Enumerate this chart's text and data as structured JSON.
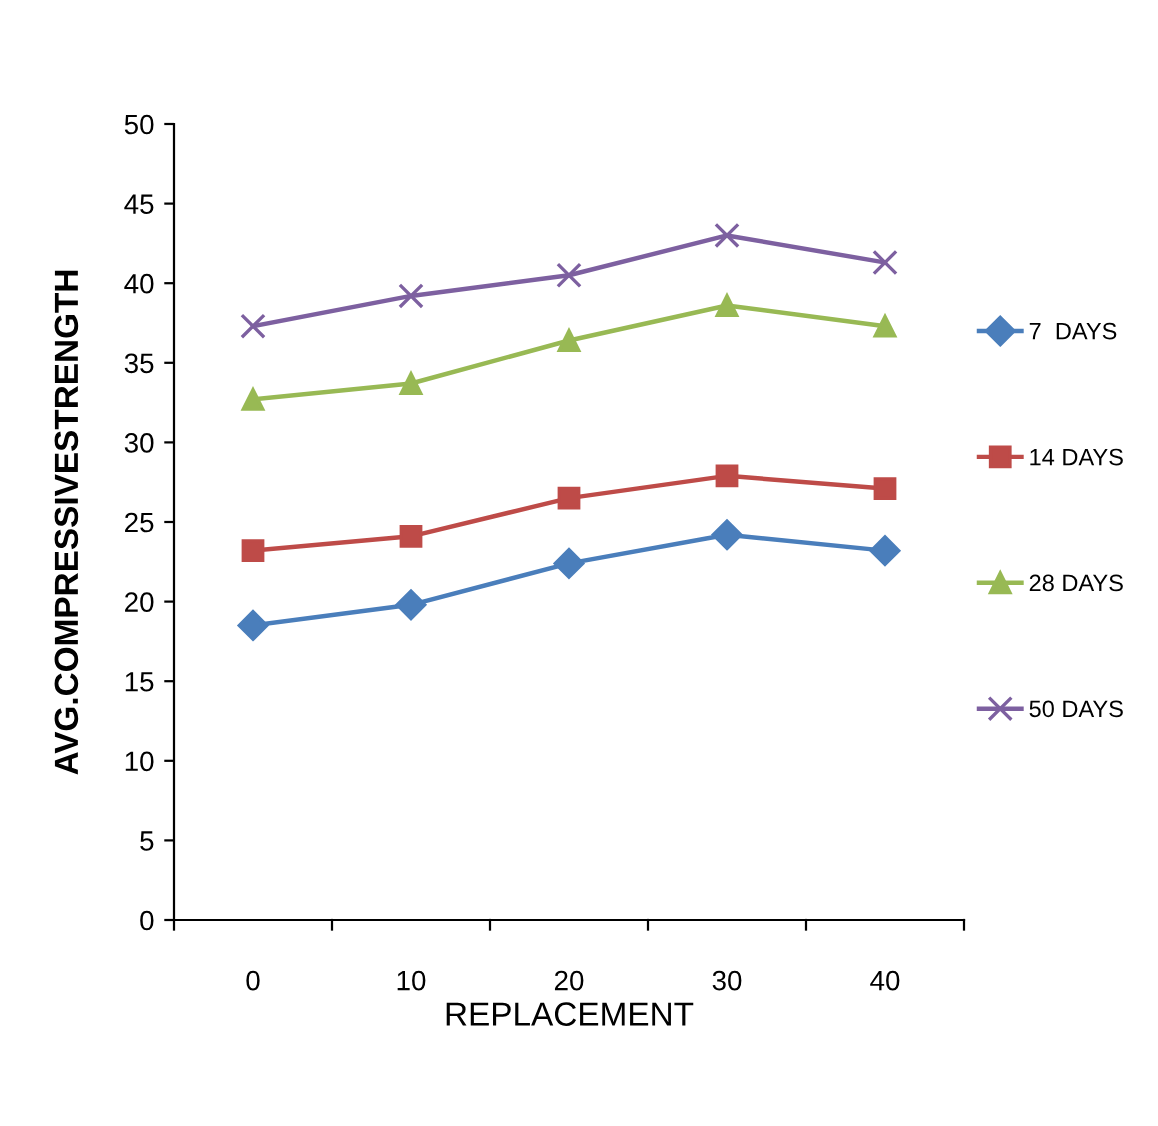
{
  "chart_data": {
    "type": "line",
    "xlabel": "REPLACEMENT",
    "ylabel": "AVG.COMPRESSIVESTRENGTH",
    "categories": [
      "0",
      "10",
      "20",
      "30",
      "40"
    ],
    "series": [
      {
        "name": "7  DAYS",
        "color": "#4a7ebb",
        "marker": "diamond",
        "values": [
          18.5,
          19.8,
          22.4,
          24.2,
          23.2
        ]
      },
      {
        "name": "14 DAYS",
        "color": "#be4b48",
        "marker": "square",
        "values": [
          23.2,
          24.1,
          26.5,
          27.9,
          27.1
        ]
      },
      {
        "name": "28 DAYS",
        "color": "#98b954",
        "marker": "triangle",
        "values": [
          32.7,
          33.7,
          36.4,
          38.6,
          37.3
        ]
      },
      {
        "name": "50 DAYS",
        "color": "#7d60a0",
        "marker": "cross",
        "values": [
          37.3,
          39.2,
          40.5,
          43.0,
          41.3
        ]
      }
    ],
    "ylim": [
      0,
      50
    ],
    "yticks": [
      0,
      5,
      10,
      15,
      20,
      25,
      30,
      35,
      40,
      45,
      50
    ],
    "grid": false,
    "legend": "right",
    "line_style": "solid"
  }
}
